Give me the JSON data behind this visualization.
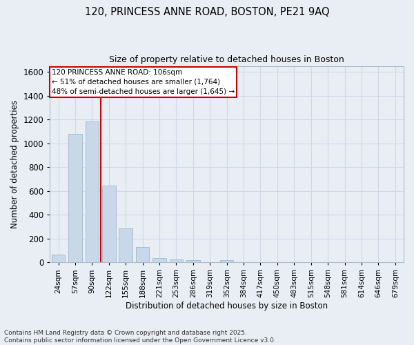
{
  "title_line1": "120, PRINCESS ANNE ROAD, BOSTON, PE21 9AQ",
  "title_line2": "Size of property relative to detached houses in Boston",
  "xlabel": "Distribution of detached houses by size in Boston",
  "ylabel": "Number of detached properties",
  "bar_labels": [
    "24sqm",
    "57sqm",
    "90sqm",
    "122sqm",
    "155sqm",
    "188sqm",
    "221sqm",
    "253sqm",
    "286sqm",
    "319sqm",
    "352sqm",
    "384sqm",
    "417sqm",
    "450sqm",
    "483sqm",
    "515sqm",
    "548sqm",
    "581sqm",
    "614sqm",
    "646sqm",
    "679sqm"
  ],
  "bar_values": [
    65,
    1080,
    1185,
    645,
    285,
    130,
    38,
    22,
    20,
    0,
    20,
    0,
    0,
    0,
    0,
    0,
    0,
    0,
    0,
    0,
    0
  ],
  "bar_color": "#c8d8e8",
  "bar_edgecolor": "#a0b8cc",
  "grid_color": "#d0d8e8",
  "background_color": "#e8eef4",
  "vline_x": 2.5,
  "vline_color": "#cc0000",
  "annotation_box_text": "120 PRINCESS ANNE ROAD: 106sqm\n← 51% of detached houses are smaller (1,764)\n48% of semi-detached houses are larger (1,645) →",
  "annotation_box_color": "#cc0000",
  "annotation_box_bg": "#ffffff",
  "ylim": [
    0,
    1650
  ],
  "yticks": [
    0,
    200,
    400,
    600,
    800,
    1000,
    1200,
    1400,
    1600
  ],
  "footnote": "Contains HM Land Registry data © Crown copyright and database right 2025.\nContains public sector information licensed under the Open Government Licence v3.0.",
  "figsize": [
    6.0,
    5.0
  ],
  "dpi": 100
}
